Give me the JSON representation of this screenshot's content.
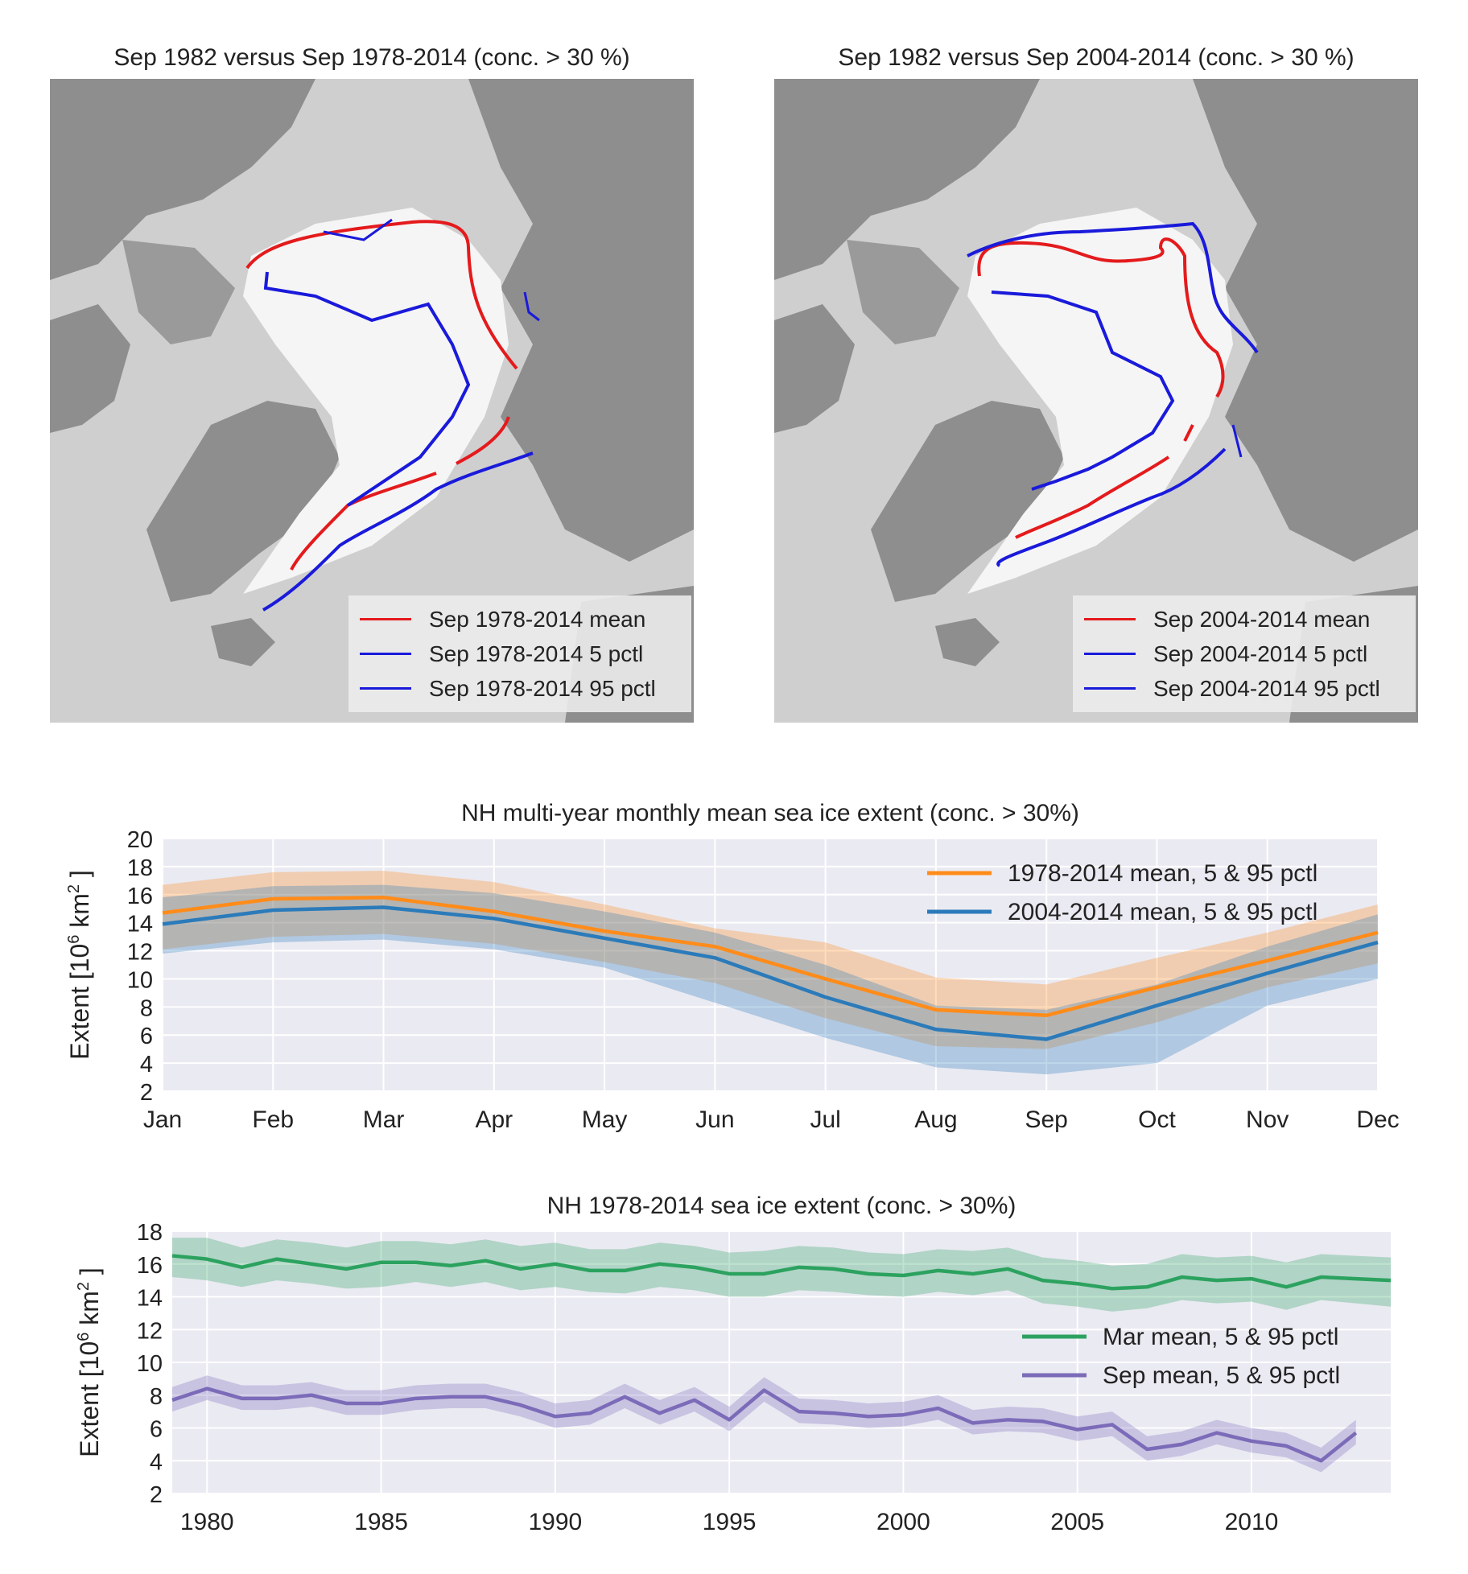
{
  "maps": [
    {
      "title": "Sep 1982 versus Sep 1978-2014 (conc. > 30 %)",
      "legend": [
        {
          "label": "Sep 1978-2014 mean",
          "color": "#e41a1c"
        },
        {
          "label": "Sep 1978-2014 5 pctl",
          "color": "#1a1adb"
        },
        {
          "label": "Sep 1978-2014 95 pctl",
          "color": "#1a1adb"
        }
      ]
    },
    {
      "title": "Sep 1982 versus Sep 2004-2014 (conc. > 30 %)",
      "legend": [
        {
          "label": "Sep 2004-2014 mean",
          "color": "#e41a1c"
        },
        {
          "label": "Sep 2004-2014 5 pctl",
          "color": "#1a1adb"
        },
        {
          "label": "Sep 2004-2014 95 pctl",
          "color": "#1a1adb"
        }
      ]
    }
  ],
  "chart_data": [
    {
      "type": "line",
      "title": "NH multi-year monthly mean sea ice extent (conc. > 30%)",
      "ylabel": "Extent [10^6 km^2]",
      "ylim": [
        2,
        20
      ],
      "yticks": [
        "2",
        "4",
        "6",
        "8",
        "10",
        "12",
        "14",
        "16",
        "18",
        "20"
      ],
      "categories": [
        "Jan",
        "Feb",
        "Mar",
        "Apr",
        "May",
        "Jun",
        "Jul",
        "Aug",
        "Sep",
        "Oct",
        "Nov",
        "Dec"
      ],
      "grid": true,
      "legend_position": "top-right",
      "series": [
        {
          "name": "1978-2014 mean, 5 & 95 pctl",
          "color": "#ff8c1a",
          "values": [
            14.7,
            15.7,
            15.8,
            14.8,
            13.4,
            12.3,
            10.0,
            7.8,
            7.4,
            9.4,
            11.3,
            13.3
          ],
          "p5": [
            12.1,
            13.0,
            13.2,
            12.5,
            11.2,
            9.7,
            7.2,
            5.2,
            5.0,
            6.9,
            9.4,
            11.1
          ],
          "p95": [
            16.7,
            17.6,
            17.7,
            16.9,
            15.3,
            13.6,
            12.6,
            10.1,
            9.6,
            11.5,
            13.3,
            15.3
          ]
        },
        {
          "name": "2004-2014 mean, 5 & 95 pctl",
          "color": "#2b7bba",
          "values": [
            13.9,
            14.9,
            15.1,
            14.3,
            12.9,
            11.5,
            8.7,
            6.4,
            5.7,
            8.1,
            10.4,
            12.6
          ],
          "p5": [
            11.8,
            12.6,
            12.8,
            12.1,
            10.8,
            8.3,
            5.8,
            3.7,
            3.2,
            4.0,
            8.1,
            10.0
          ],
          "p95": [
            15.8,
            16.6,
            16.7,
            16.1,
            14.8,
            13.3,
            11.0,
            8.1,
            7.8,
            9.6,
            12.3,
            14.6
          ]
        }
      ]
    },
    {
      "type": "line",
      "title": "NH 1978-2014 sea ice extent (conc. > 30%)",
      "ylabel": "Extent [10^6 km^2]",
      "ylim": [
        2,
        18
      ],
      "xlim": [
        1979,
        2014
      ],
      "yticks": [
        "2",
        "4",
        "6",
        "8",
        "10",
        "12",
        "14",
        "16",
        "18"
      ],
      "xticks": [
        "1980",
        "1985",
        "1990",
        "1995",
        "2000",
        "2005",
        "2010"
      ],
      "grid": true,
      "legend_position": "center-right",
      "x": [
        1979,
        1980,
        1981,
        1982,
        1983,
        1984,
        1985,
        1986,
        1987,
        1988,
        1989,
        1990,
        1991,
        1992,
        1993,
        1994,
        1995,
        1996,
        1997,
        1998,
        1999,
        2000,
        2001,
        2002,
        2003,
        2004,
        2005,
        2006,
        2007,
        2008,
        2009,
        2010,
        2011,
        2012,
        2013,
        2014
      ],
      "series": [
        {
          "name": "Mar mean, 5 & 95 pctl",
          "color": "#2ca25f",
          "values": [
            16.5,
            16.3,
            15.8,
            16.3,
            16.0,
            15.7,
            16.1,
            16.1,
            15.9,
            16.2,
            15.7,
            16.0,
            15.6,
            15.6,
            16.0,
            15.8,
            15.4,
            15.4,
            15.8,
            15.7,
            15.4,
            15.3,
            15.6,
            15.4,
            15.7,
            15.0,
            14.8,
            14.5,
            14.6,
            15.2,
            15.0,
            15.1,
            14.6,
            15.2,
            15.1,
            15.0
          ],
          "p5": [
            15.2,
            15.0,
            14.6,
            15.0,
            14.8,
            14.5,
            14.6,
            14.9,
            14.6,
            14.9,
            14.4,
            14.6,
            14.3,
            14.2,
            14.6,
            14.4,
            14.0,
            14.0,
            14.4,
            14.3,
            14.1,
            14.0,
            14.3,
            14.1,
            14.4,
            13.6,
            13.4,
            13.1,
            13.3,
            13.8,
            13.6,
            13.7,
            13.2,
            13.8,
            13.6,
            13.4
          ],
          "p95": [
            17.6,
            17.6,
            17.0,
            17.5,
            17.3,
            17.0,
            17.4,
            17.4,
            17.2,
            17.5,
            17.1,
            17.3,
            16.9,
            16.9,
            17.3,
            17.1,
            16.7,
            16.8,
            17.1,
            17.0,
            16.7,
            16.6,
            16.9,
            16.8,
            17.0,
            16.4,
            16.2,
            15.9,
            16.0,
            16.6,
            16.4,
            16.5,
            16.1,
            16.6,
            16.5,
            16.4
          ]
        },
        {
          "name": "Sep mean, 5 & 95 pctl",
          "color": "#7b6bb8",
          "values": [
            7.7,
            8.4,
            7.8,
            7.8,
            8.0,
            7.5,
            7.5,
            7.8,
            7.9,
            7.9,
            7.4,
            6.7,
            6.9,
            7.9,
            6.9,
            7.7,
            6.5,
            8.3,
            7.0,
            6.9,
            6.7,
            6.8,
            7.2,
            6.3,
            6.5,
            6.4,
            5.9,
            6.2,
            4.7,
            5.0,
            5.7,
            5.2,
            4.9,
            4.0,
            5.7,
            null
          ],
          "p5": [
            7.0,
            7.7,
            7.1,
            7.1,
            7.3,
            6.8,
            6.8,
            7.1,
            7.2,
            7.2,
            6.7,
            6.0,
            6.2,
            7.2,
            6.2,
            7.0,
            5.8,
            7.6,
            6.3,
            6.2,
            6.0,
            6.1,
            6.5,
            5.6,
            5.8,
            5.7,
            5.2,
            5.5,
            4.0,
            4.3,
            5.0,
            4.5,
            4.2,
            3.3,
            5.0,
            null
          ],
          "p95": [
            8.5,
            9.2,
            8.6,
            8.6,
            8.8,
            8.3,
            8.3,
            8.6,
            8.7,
            8.7,
            8.2,
            7.5,
            7.7,
            8.7,
            7.7,
            8.5,
            7.3,
            9.1,
            7.8,
            7.7,
            7.5,
            7.6,
            8.0,
            7.1,
            7.3,
            7.2,
            6.7,
            7.0,
            5.5,
            5.8,
            6.5,
            6.0,
            5.7,
            4.8,
            6.5,
            null
          ]
        }
      ]
    }
  ]
}
